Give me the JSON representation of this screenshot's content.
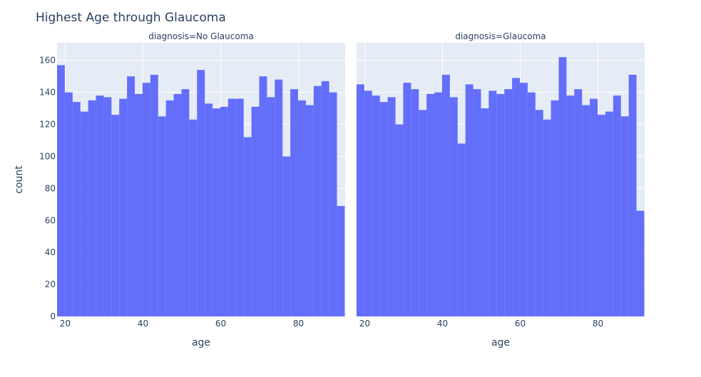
{
  "chart_data": {
    "type": "bar",
    "title": "Highest Age through Glaucoma",
    "xlabel": "age",
    "ylabel": "count",
    "ylim": [
      0,
      171
    ],
    "xlim": [
      17.9,
      92
    ],
    "bin_width": 2,
    "first_bin_start": 17.9,
    "grid": true,
    "legend": "none",
    "colors": {
      "bar": "#636efa",
      "plot_bg": "#e5ecf6",
      "grid": "#ffffff",
      "text": "#2a3f5f"
    },
    "y_ticks": [
      0,
      20,
      40,
      60,
      80,
      100,
      120,
      140,
      160
    ],
    "x_ticks": [
      20,
      40,
      60,
      80
    ],
    "panels": [
      {
        "label": "diagnosis=No Glaucoma",
        "values": [
          157,
          140,
          134,
          128,
          135,
          138,
          137,
          126,
          136,
          150,
          139,
          146,
          151,
          125,
          135,
          139,
          142,
          123,
          154,
          133,
          130,
          131,
          136,
          136,
          112,
          131,
          150,
          137,
          148,
          100,
          142,
          135,
          132,
          144,
          147,
          140,
          69
        ]
      },
      {
        "label": "diagnosis=Glaucoma",
        "values": [
          145,
          141,
          138,
          134,
          137,
          120,
          146,
          142,
          129,
          139,
          140,
          151,
          137,
          108,
          145,
          142,
          130,
          141,
          139,
          142,
          149,
          146,
          140,
          129,
          123,
          135,
          162,
          138,
          142,
          132,
          136,
          126,
          128,
          138,
          125,
          151,
          66
        ]
      }
    ]
  }
}
